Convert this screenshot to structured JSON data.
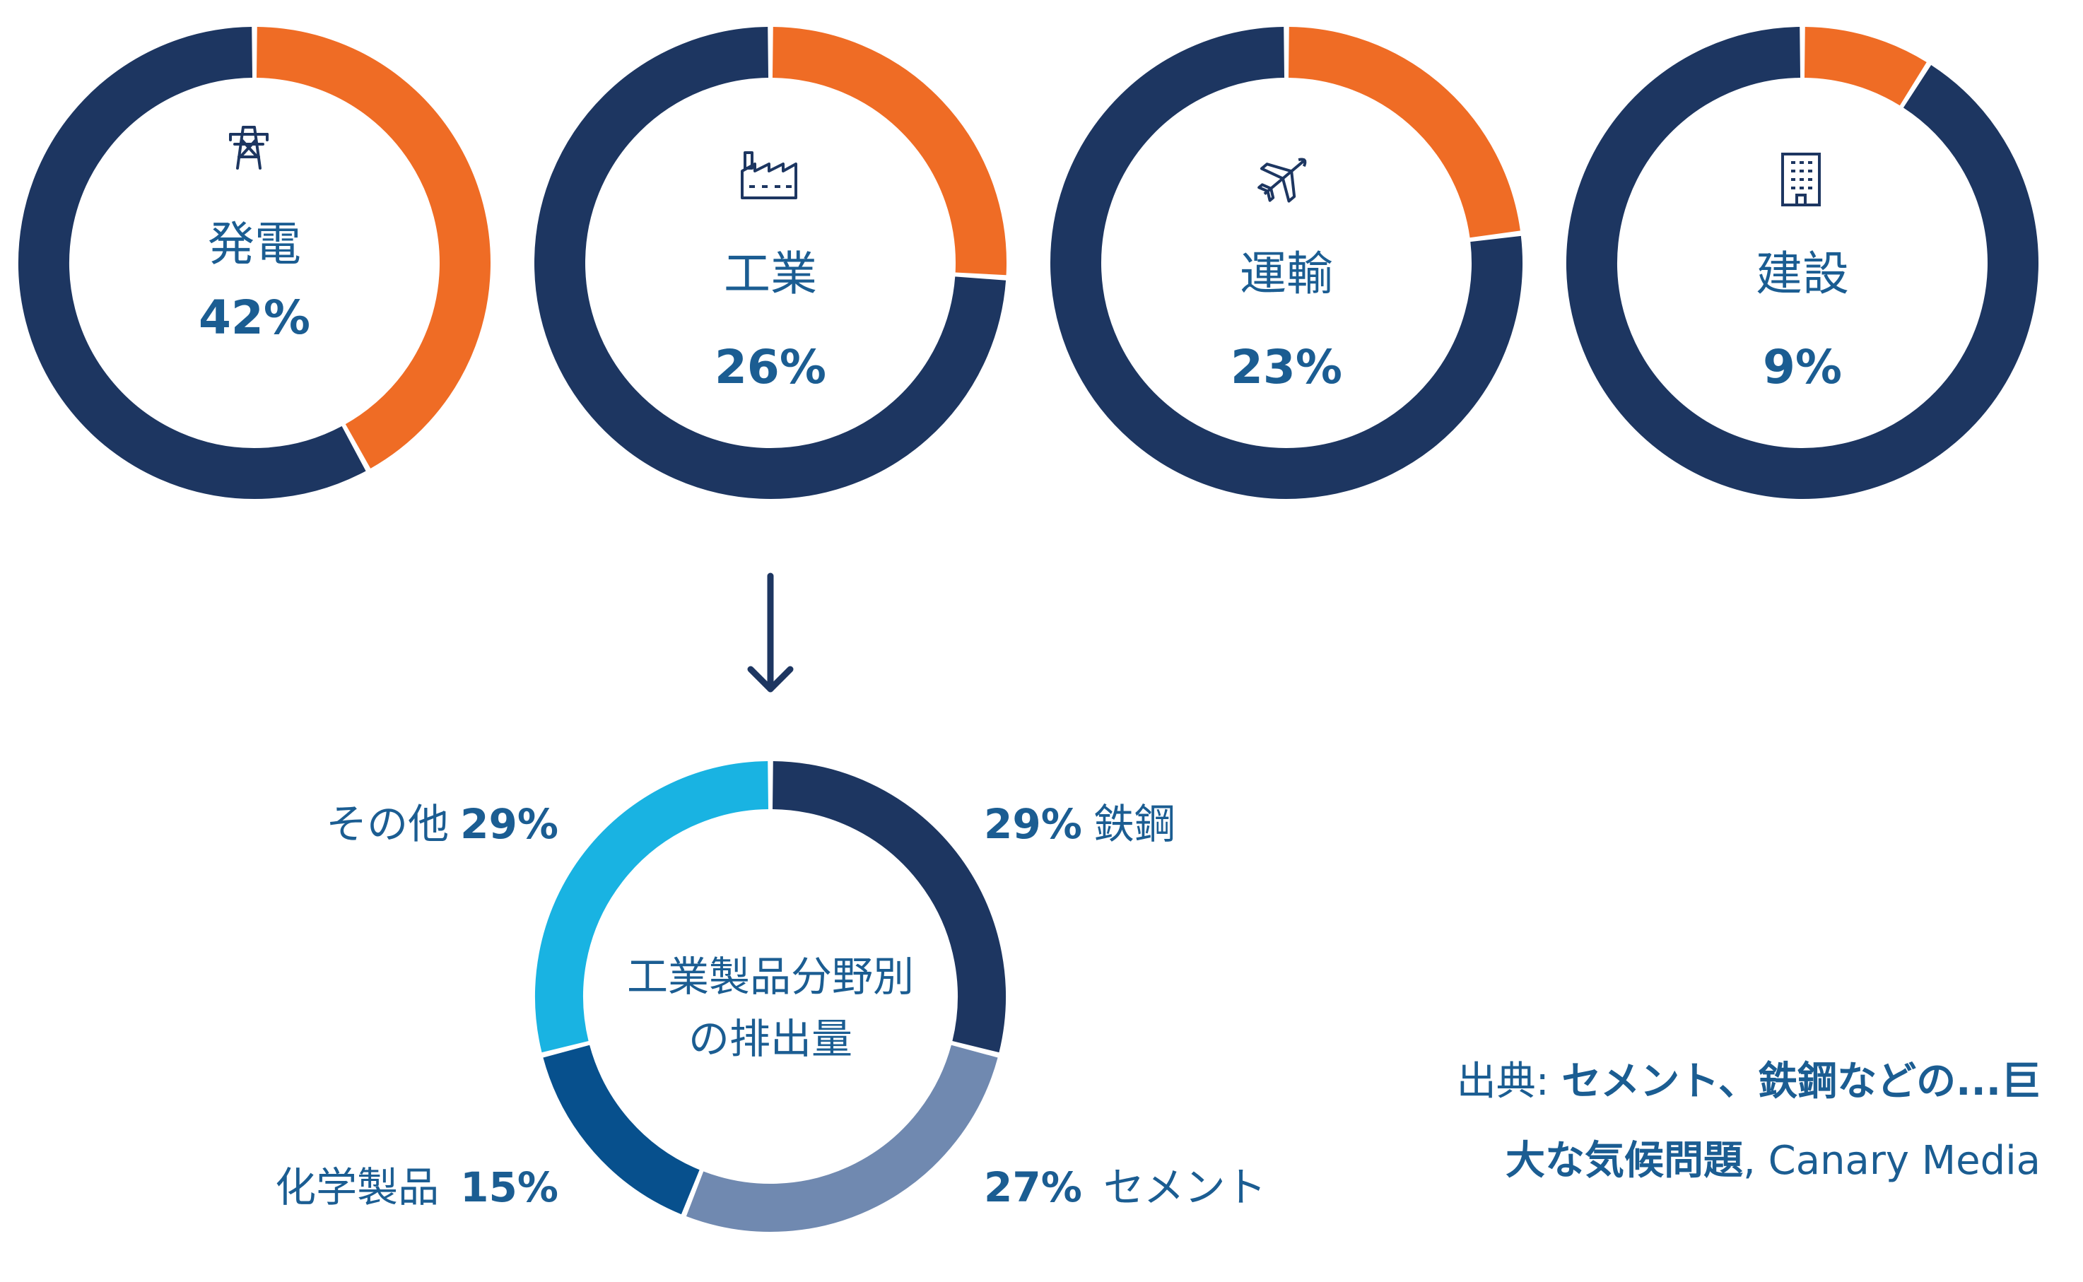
{
  "colors": {
    "navy": "#1d3661",
    "orange": "#ef6c25",
    "label_blue": "#1b5d92",
    "seg_steel": "#1d3661",
    "seg_cement": "#7089b0",
    "seg_chemicals": "#07508d",
    "seg_other": "#19b3e2"
  },
  "chart_data": [
    {
      "type": "pie",
      "variant": "donut",
      "label": "発電",
      "value_label": "42%",
      "value": 42,
      "icon": "power-tower-icon"
    },
    {
      "type": "pie",
      "variant": "donut",
      "label": "工業",
      "value_label": "26%",
      "value": 26,
      "icon": "factory-icon"
    },
    {
      "type": "pie",
      "variant": "donut",
      "label": "運輸",
      "value_label": "23%",
      "value": 23,
      "icon": "airplane-icon"
    },
    {
      "type": "pie",
      "variant": "donut",
      "label": "建設",
      "value_label": "9%",
      "value": 9,
      "icon": "building-icon"
    },
    {
      "type": "pie",
      "variant": "donut",
      "center_label_line1": "工業製品分野別",
      "center_label_line2": "の排出量",
      "slices": [
        {
          "name": "鉄鋼",
          "value": 29,
          "pct": "29%",
          "color": "#1d3661"
        },
        {
          "name": "セメント",
          "value": 27,
          "pct": "27%",
          "color": "#7089b0"
        },
        {
          "name": "化学製品",
          "value": 15,
          "pct": "15%",
          "color": "#07508d"
        },
        {
          "name": "その他",
          "value": 29,
          "pct": "29%",
          "color": "#19b3e2"
        }
      ]
    }
  ],
  "source": {
    "prefix": "出典: ",
    "title_line1": "セメント、鉄鋼などの...巨",
    "title_line2": "大な気候問題",
    "suffix": ", Canary Media"
  }
}
